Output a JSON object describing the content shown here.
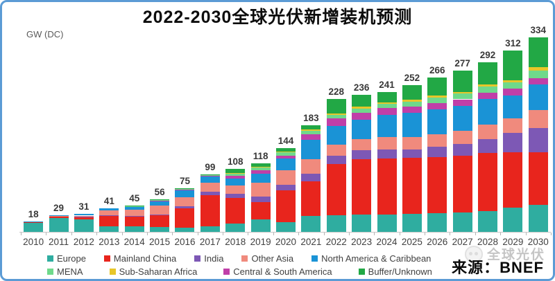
{
  "frame": {
    "border_color": "#5b9bd5"
  },
  "title": "2022-2030全球光伏新增装机预测",
  "axis": {
    "unit_label": "GW (DC)"
  },
  "source": {
    "label": "来源：BNEF",
    "watermark_text": "全球光伏",
    "watermark_icon": "panda-logo-icon"
  },
  "legend": {
    "rows": [
      [
        "Europe",
        "Mainland China",
        "India",
        "Other Asia",
        "North America & Caribbean"
      ],
      [
        "MENA",
        "Sub-Saharan Africa",
        "Central & South America",
        "Buffer/Unknown"
      ]
    ]
  },
  "chart_data": {
    "type": "bar",
    "stacked": true,
    "title": "2022-2030全球光伏新增装机预测",
    "ylabel": "GW (DC)",
    "xlabel": "",
    "ylim": [
      0,
      350
    ],
    "grid": false,
    "legend_position": "bottom",
    "categories": [
      "2010",
      "2011",
      "2012",
      "2013",
      "2014",
      "2015",
      "2016",
      "2017",
      "2018",
      "2019",
      "2020",
      "2021",
      "2022",
      "2023",
      "2024",
      "2025",
      "2026",
      "2027",
      "2028",
      "2029",
      "2030"
    ],
    "totals": [
      18,
      29,
      31,
      41,
      45,
      56,
      75,
      99,
      108,
      118,
      144,
      183,
      228,
      236,
      241,
      252,
      266,
      277,
      292,
      312,
      334
    ],
    "series": [
      {
        "name": "Europe",
        "color": "#2fada0",
        "values": [
          15,
          24,
          22,
          9,
          9,
          8,
          7,
          10,
          14,
          21,
          17,
          27,
          29,
          30,
          30,
          31,
          32,
          33,
          36,
          42,
          47
        ]
      },
      {
        "name": "Mainland China",
        "color": "#e8251d",
        "values": [
          1.5,
          2.5,
          4,
          19,
          17,
          20,
          34,
          53,
          44,
          30,
          55,
          60,
          88,
          95,
          96,
          96,
          97,
          98,
          100,
          95,
          90
        ]
      },
      {
        "name": "India",
        "color": "#7d58b5",
        "values": [
          0,
          0.5,
          0.5,
          1,
          1,
          2,
          3,
          6,
          7,
          10,
          9,
          13,
          14,
          15,
          16,
          15,
          17,
          20,
          24,
          33,
          42
        ]
      },
      {
        "name": "Other Asia",
        "color": "#f08a7d",
        "values": [
          1,
          1,
          1.5,
          8,
          11,
          15,
          15,
          15,
          15,
          24,
          25,
          25,
          19,
          20,
          21,
          21,
          22,
          23,
          25,
          25,
          30
        ]
      },
      {
        "name": "North America & Caribbean",
        "color": "#1a93d6",
        "values": [
          0.5,
          1,
          3,
          4,
          6,
          8,
          13,
          12,
          12,
          15,
          20,
          33,
          32,
          33,
          38,
          42,
          43,
          43,
          44,
          40,
          45
        ]
      },
      {
        "name": "Central & South America",
        "color": "#c03fa8",
        "values": [
          0,
          0,
          0,
          0,
          0,
          1,
          1,
          1,
          5,
          6,
          5,
          10,
          13,
          12,
          12,
          11,
          11,
          11,
          10,
          11,
          10
        ]
      },
      {
        "name": "MENA",
        "color": "#6fd98b",
        "values": [
          0,
          0,
          0,
          0,
          0.5,
          1,
          1,
          1,
          3,
          5,
          6,
          6,
          6,
          7,
          7,
          8,
          9,
          10,
          11,
          11,
          13
        ]
      },
      {
        "name": "Sub-Saharan Africa",
        "color": "#e8c629",
        "values": [
          0,
          0,
          0,
          0,
          0,
          0,
          0,
          0,
          1,
          1,
          1,
          2,
          3,
          3,
          3,
          3,
          3,
          3,
          4,
          4,
          6
        ]
      },
      {
        "name": "Buffer/Unknown",
        "color": "#22a845",
        "values": [
          0,
          0,
          0,
          0,
          0.5,
          1,
          1,
          1,
          7,
          6,
          6,
          7,
          24,
          21,
          18,
          25,
          32,
          36,
          38,
          51,
          51
        ]
      }
    ]
  }
}
